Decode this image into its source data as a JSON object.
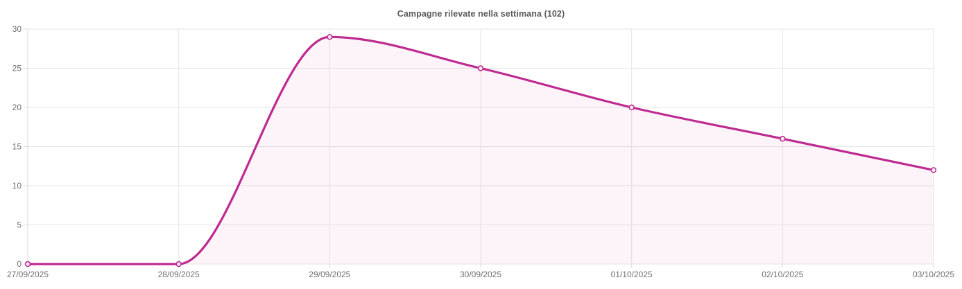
{
  "chart_data": {
    "type": "line",
    "title": "Campagne rilevate nella settimana (102)",
    "categories": [
      "27/09/2025",
      "28/09/2025",
      "29/09/2025",
      "30/09/2025",
      "01/10/2025",
      "02/10/2025",
      "03/10/2025"
    ],
    "values": [
      0,
      0,
      29,
      25,
      20,
      16,
      12
    ],
    "xlabel": "",
    "ylabel": "",
    "ylim": [
      0,
      30
    ],
    "y_ticks": [
      0,
      5,
      10,
      15,
      20,
      25,
      30
    ],
    "smooth": true,
    "area": true,
    "grid": true,
    "legend": "none",
    "point_style": "hollow-circle",
    "colors": {
      "line": "#be2a90",
      "area_fill": "rgba(190, 42, 144, 0.05)",
      "marker_fill": "#ffffff",
      "gridline": "#e6e6e6",
      "axis_line": "#d9d9d9",
      "tick_label": "#707070",
      "title": "#5a5a5a",
      "background": "#ffffff"
    }
  }
}
